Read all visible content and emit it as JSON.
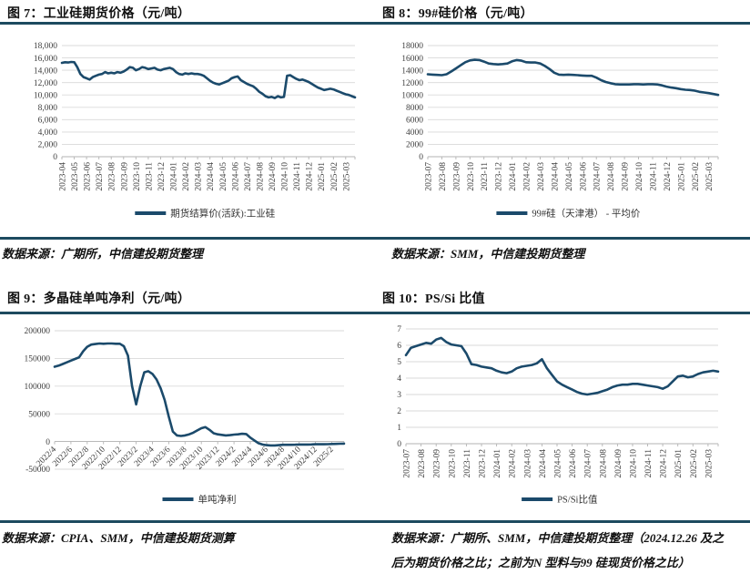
{
  "page": {
    "background": "#ffffff",
    "rule_color": "#1d4a5f",
    "line_color": "#1b4a6b",
    "grid_color": "#d9d9d9"
  },
  "panels": [
    {
      "title": "图 7：工业硅期货价格（元/吨）",
      "legend": "期货结算价(活跃):工业硅",
      "source": "数据来源：广期所，中信建投期货整理"
    },
    {
      "title": "图 8：99#硅价格（元/吨）",
      "legend": "99#硅（天津港） - 平均价",
      "source": "数据来源：SMM，中信建投期货整理"
    },
    {
      "title": "图 9：多晶硅单吨净利（元/吨）",
      "legend": "单吨净利",
      "source": "数据来源：CPIA、SMM，中信建投期货测算"
    },
    {
      "title": "图 10：PS/Si 比值",
      "legend": "PS/Si比值",
      "source_line1": "数据来源：广期所、SMM，中信建投期货整理（2024.12.26 及之",
      "source_line2": "后为期货价格之比；之前为N 型料与99 硅现货价格之比）"
    }
  ],
  "chart_data": [
    {
      "type": "line",
      "title": "图 7：工业硅期货价格（元/吨）",
      "legend": "期货结算价(活跃):工业硅",
      "line_color": "#1b4a6b",
      "ylim": [
        0,
        18000
      ],
      "y_tick_values": [
        18000,
        16000,
        14000,
        12000,
        10000,
        8000,
        6000,
        4000,
        2000,
        0
      ],
      "y_tick_labels": [
        "18,000",
        "16,000",
        "14,000",
        "12,000",
        "10,000",
        "8,000",
        "6,000",
        "4,000",
        "2,000",
        "0"
      ],
      "x_labels": [
        "2023-04",
        "2023-05",
        "2023-06",
        "2023-07",
        "2023-08",
        "2023-09",
        "2023-10",
        "2023-11",
        "2023-12",
        "2024-01",
        "2024-02",
        "2024-03",
        "2024-04",
        "2024-05",
        "2024-06",
        "2024-07",
        "2024-08",
        "2024-09",
        "2024-10",
        "2024-11",
        "2024-12",
        "2025-01",
        "2025-02",
        "2025-03"
      ],
      "x_label_rotation": -90,
      "x_label_step_months": 1,
      "points_per_month": 4,
      "values": [
        15200,
        15300,
        15250,
        15350,
        15300,
        14500,
        13400,
        12900,
        12700,
        12500,
        12900,
        13100,
        13300,
        13400,
        13700,
        13500,
        13600,
        13500,
        13700,
        13600,
        13800,
        14100,
        14500,
        14400,
        14000,
        14200,
        14500,
        14400,
        14200,
        14300,
        14400,
        14100,
        14000,
        14200,
        14300,
        14400,
        14200,
        13700,
        13400,
        13300,
        13500,
        13400,
        13500,
        13400,
        13400,
        13300,
        13100,
        12700,
        12300,
        12000,
        11800,
        11700,
        11900,
        12100,
        12300,
        12700,
        12900,
        13000,
        12400,
        12100,
        11800,
        11600,
        11400,
        11000,
        10500,
        10200,
        9800,
        9600,
        9700,
        9500,
        9800,
        9600,
        9700,
        13100,
        13200,
        12900,
        12600,
        12400,
        12500,
        12300,
        12100,
        11800,
        11500,
        11200,
        11000,
        10800,
        10900,
        11000,
        10900,
        10700,
        10500,
        10300,
        10100,
        10000,
        9800,
        9600
      ]
    },
    {
      "type": "line",
      "title": "图 8：99#硅价格（元/吨）",
      "legend": "99#硅（天津港） - 平均价",
      "line_color": "#1b4a6b",
      "ylim": [
        0,
        18000
      ],
      "y_tick_values": [
        18000,
        16000,
        14000,
        12000,
        10000,
        8000,
        6000,
        4000,
        2000,
        0
      ],
      "y_tick_labels": [
        "18000",
        "16000",
        "14000",
        "12000",
        "10000",
        "8000",
        "6000",
        "4000",
        "2000",
        "0"
      ],
      "x_labels": [
        "2023-07",
        "2023-08",
        "2023-09",
        "2023-10",
        "2023-11",
        "2023-12",
        "2024-01",
        "2024-02",
        "2024-03",
        "2024-04",
        "2024-05",
        "2024-06",
        "2024-07",
        "2024-08",
        "2024-09",
        "2024-10",
        "2024-11",
        "2024-12",
        "2025-01",
        "2025-02",
        "2025-03"
      ],
      "x_label_rotation": -90,
      "x_label_step_months": 1,
      "points_per_month": 3,
      "values": [
        13350,
        13300,
        13250,
        13200,
        13350,
        13800,
        14300,
        14800,
        15300,
        15600,
        15700,
        15650,
        15400,
        15100,
        15000,
        14950,
        15000,
        15100,
        15450,
        15650,
        15550,
        15300,
        15250,
        15250,
        15100,
        14700,
        14200,
        13600,
        13300,
        13250,
        13300,
        13250,
        13200,
        13150,
        13100,
        13100,
        12800,
        12400,
        12100,
        11900,
        11750,
        11700,
        11700,
        11700,
        11750,
        11750,
        11700,
        11750,
        11750,
        11700,
        11550,
        11350,
        11200,
        11100,
        10950,
        10850,
        10800,
        10700,
        10500,
        10400,
        10300,
        10150,
        10000
      ]
    },
    {
      "type": "line",
      "title": "图 9：多晶硅单吨净利（元/吨）",
      "legend": "单吨净利",
      "line_color": "#1b4a6b",
      "ylim": [
        -50000,
        200000
      ],
      "y_tick_values": [
        200000,
        150000,
        100000,
        50000,
        0,
        -50000
      ],
      "y_tick_labels": [
        "200000",
        "150000",
        "100000",
        "50000",
        "0",
        "-50000"
      ],
      "x_labels": [
        "2022/4",
        "2022/6",
        "2022/8",
        "2022/10",
        "2022/12",
        "2023/2",
        "2023/4",
        "2023/6",
        "2023/8",
        "2023/10",
        "2023/12",
        "2024/2",
        "2024/4",
        "2024/6",
        "2024/8",
        "2024/10",
        "2024/12",
        "2025/2"
      ],
      "x_label_rotation": -45,
      "x_label_step_months": 2,
      "points_per_month": 2,
      "values": [
        135000,
        137000,
        140000,
        143000,
        146000,
        149000,
        152000,
        163000,
        171000,
        175000,
        176000,
        177000,
        176500,
        177000,
        177000,
        176500,
        176500,
        172000,
        155000,
        100000,
        67000,
        100000,
        125000,
        127000,
        122000,
        112000,
        96000,
        75000,
        45000,
        18000,
        11000,
        10000,
        11000,
        13000,
        16000,
        20000,
        24000,
        26000,
        21000,
        15000,
        13000,
        12000,
        11000,
        11500,
        12500,
        13000,
        14000,
        13500,
        7000,
        2000,
        -3000,
        -5500,
        -6500,
        -7000,
        -7000,
        -6500,
        -6000,
        -6000,
        -6000,
        -5800,
        -5500,
        -5500,
        -5500,
        -5300,
        -5000,
        -5000,
        -5000,
        -4800,
        -4500,
        -4200,
        -4000,
        -3800
      ]
    },
    {
      "type": "line",
      "title": "图 10：PS/Si 比值",
      "legend": "PS/Si比值",
      "line_color": "#1b4a6b",
      "ylim": [
        0,
        7
      ],
      "y_tick_values": [
        7,
        6,
        5,
        4,
        3,
        2,
        1,
        0
      ],
      "y_tick_labels": [
        "7",
        "6",
        "5",
        "4",
        "3",
        "2",
        "1",
        "0"
      ],
      "x_labels": [
        "2023-07",
        "2023-08",
        "2023-09",
        "2023-10",
        "2023-11",
        "2023-12",
        "2024-01",
        "2024-02",
        "2024-03",
        "2024-04",
        "2024-05",
        "2024-06",
        "2024-07",
        "2024-08",
        "2024-09",
        "2024-10",
        "2024-11",
        "2024-12",
        "2025-01",
        "2025-02",
        "2025-03"
      ],
      "x_label_rotation": -90,
      "x_label_step_months": 1,
      "points_per_month": 3,
      "values": [
        5.4,
        5.85,
        5.95,
        6.05,
        6.15,
        6.1,
        6.35,
        6.45,
        6.2,
        6.05,
        6.0,
        5.95,
        5.5,
        4.85,
        4.8,
        4.7,
        4.65,
        4.6,
        4.45,
        4.35,
        4.3,
        4.4,
        4.6,
        4.7,
        4.75,
        4.8,
        4.9,
        5.15,
        4.6,
        4.2,
        3.8,
        3.6,
        3.45,
        3.3,
        3.15,
        3.05,
        3.0,
        3.05,
        3.1,
        3.2,
        3.3,
        3.45,
        3.55,
        3.6,
        3.6,
        3.65,
        3.65,
        3.6,
        3.55,
        3.5,
        3.45,
        3.35,
        3.5,
        3.8,
        4.1,
        4.15,
        4.05,
        4.1,
        4.25,
        4.35,
        4.4,
        4.45,
        4.4
      ]
    }
  ]
}
